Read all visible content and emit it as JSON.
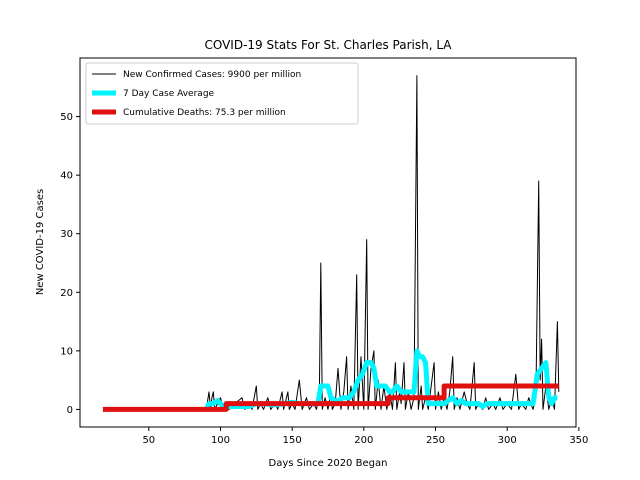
{
  "chart_data": {
    "type": "line",
    "title": "COVID-19 Stats For St. Charles Parish, LA",
    "xlabel": "Days Since 2020 Began",
    "ylabel": "New COVID-19 Cases",
    "xlim": [
      2,
      348
    ],
    "ylim": [
      -3,
      60
    ],
    "xticks": [
      50,
      100,
      150,
      200,
      250,
      300,
      350
    ],
    "yticks": [
      0,
      10,
      20,
      30,
      40,
      50
    ],
    "grid": false,
    "legend_position": "top-left",
    "series": [
      {
        "name": "New Confirmed Cases: 9900 per million",
        "color": "#000000",
        "style": "thin-line",
        "points": [
          [
            90,
            0
          ],
          [
            92,
            3
          ],
          [
            93,
            0
          ],
          [
            94,
            2
          ],
          [
            95,
            3
          ],
          [
            96,
            0
          ],
          [
            98,
            1
          ],
          [
            100,
            2
          ],
          [
            102,
            0
          ],
          [
            104,
            1
          ],
          [
            106,
            0
          ],
          [
            110,
            1
          ],
          [
            115,
            2
          ],
          [
            117,
            0
          ],
          [
            120,
            1
          ],
          [
            122,
            0
          ],
          [
            125,
            4
          ],
          [
            126,
            0
          ],
          [
            128,
            1
          ],
          [
            130,
            0
          ],
          [
            133,
            2
          ],
          [
            135,
            0
          ],
          [
            138,
            1
          ],
          [
            140,
            0
          ],
          [
            143,
            3
          ],
          [
            144,
            0
          ],
          [
            147,
            3
          ],
          [
            148,
            0
          ],
          [
            150,
            1
          ],
          [
            152,
            0
          ],
          [
            155,
            5
          ],
          [
            157,
            0
          ],
          [
            160,
            2
          ],
          [
            162,
            0
          ],
          [
            165,
            1
          ],
          [
            167,
            0
          ],
          [
            169,
            3
          ],
          [
            170,
            25
          ],
          [
            171,
            0
          ],
          [
            173,
            2
          ],
          [
            175,
            0
          ],
          [
            177,
            3
          ],
          [
            178,
            0
          ],
          [
            180,
            1
          ],
          [
            182,
            7
          ],
          [
            184,
            0
          ],
          [
            186,
            3
          ],
          [
            188,
            9
          ],
          [
            189,
            0
          ],
          [
            191,
            4
          ],
          [
            193,
            0
          ],
          [
            195,
            23
          ],
          [
            196,
            0
          ],
          [
            198,
            9
          ],
          [
            200,
            0
          ],
          [
            202,
            29
          ],
          [
            203,
            0
          ],
          [
            205,
            7
          ],
          [
            207,
            10
          ],
          [
            208,
            0
          ],
          [
            210,
            5
          ],
          [
            212,
            0
          ],
          [
            214,
            4
          ],
          [
            216,
            0
          ],
          [
            218,
            3
          ],
          [
            220,
            0
          ],
          [
            222,
            8
          ],
          [
            223,
            0
          ],
          [
            225,
            3
          ],
          [
            226,
            1
          ],
          [
            228,
            8
          ],
          [
            229,
            0
          ],
          [
            231,
            3
          ],
          [
            233,
            0
          ],
          [
            235,
            2
          ],
          [
            237,
            57
          ],
          [
            238,
            0
          ],
          [
            240,
            4
          ],
          [
            241,
            0
          ],
          [
            243,
            2
          ],
          [
            245,
            0
          ],
          [
            247,
            4
          ],
          [
            249,
            8
          ],
          [
            250,
            0
          ],
          [
            252,
            3
          ],
          [
            254,
            0
          ],
          [
            256,
            2
          ],
          [
            258,
            0
          ],
          [
            260,
            3
          ],
          [
            262,
            9
          ],
          [
            263,
            0
          ],
          [
            265,
            2
          ],
          [
            267,
            0
          ],
          [
            270,
            3
          ],
          [
            272,
            1
          ],
          [
            274,
            0
          ],
          [
            277,
            8
          ],
          [
            278,
            0
          ],
          [
            280,
            1
          ],
          [
            283,
            0
          ],
          [
            285,
            2
          ],
          [
            287,
            0
          ],
          [
            290,
            1
          ],
          [
            292,
            0
          ],
          [
            295,
            2
          ],
          [
            297,
            0
          ],
          [
            300,
            1
          ],
          [
            303,
            0
          ],
          [
            306,
            6
          ],
          [
            308,
            0
          ],
          [
            310,
            1
          ],
          [
            313,
            0
          ],
          [
            315,
            2
          ],
          [
            318,
            0
          ],
          [
            320,
            2
          ],
          [
            322,
            39
          ],
          [
            323,
            5
          ],
          [
            324,
            12
          ],
          [
            325,
            0
          ],
          [
            327,
            4
          ],
          [
            329,
            0
          ],
          [
            331,
            2
          ],
          [
            333,
            0
          ],
          [
            335,
            15
          ],
          [
            336,
            3
          ]
        ]
      },
      {
        "name": "7 Day Case Average",
        "color": "#00f5ff",
        "style": "thick-line",
        "points": [
          [
            90,
            0
          ],
          [
            92,
            1
          ],
          [
            95,
            1
          ],
          [
            98,
            1.5
          ],
          [
            100,
            1
          ],
          [
            102,
            0.5
          ],
          [
            105,
            0.5
          ],
          [
            108,
            0.5
          ],
          [
            112,
            0.5
          ],
          [
            116,
            0.5
          ],
          [
            120,
            0.5
          ],
          [
            125,
            1
          ],
          [
            130,
            1
          ],
          [
            135,
            0.8
          ],
          [
            140,
            0.8
          ],
          [
            145,
            1
          ],
          [
            150,
            1.2
          ],
          [
            155,
            1
          ],
          [
            160,
            1
          ],
          [
            165,
            1
          ],
          [
            168,
            1
          ],
          [
            170,
            4
          ],
          [
            172,
            4
          ],
          [
            175,
            4
          ],
          [
            177,
            2
          ],
          [
            180,
            1.5
          ],
          [
            183,
            1.5
          ],
          [
            185,
            2
          ],
          [
            188,
            2
          ],
          [
            190,
            2
          ],
          [
            193,
            3
          ],
          [
            196,
            5
          ],
          [
            199,
            6
          ],
          [
            202,
            8
          ],
          [
            205,
            8
          ],
          [
            207,
            7
          ],
          [
            209,
            4
          ],
          [
            212,
            4
          ],
          [
            215,
            4
          ],
          [
            218,
            3
          ],
          [
            220,
            3
          ],
          [
            223,
            4
          ],
          [
            226,
            3
          ],
          [
            229,
            3
          ],
          [
            233,
            3
          ],
          [
            235,
            3
          ],
          [
            237,
            10
          ],
          [
            239,
            9
          ],
          [
            241,
            9
          ],
          [
            243,
            8
          ],
          [
            245,
            1
          ],
          [
            248,
            1
          ],
          [
            250,
            1
          ],
          [
            253,
            1
          ],
          [
            256,
            1
          ],
          [
            259,
            1.5
          ],
          [
            262,
            2
          ],
          [
            265,
            1
          ],
          [
            268,
            1.5
          ],
          [
            271,
            1
          ],
          [
            274,
            1
          ],
          [
            277,
            1
          ],
          [
            280,
            1
          ],
          [
            283,
            0.5
          ],
          [
            286,
            1
          ],
          [
            289,
            1
          ],
          [
            292,
            1
          ],
          [
            296,
            1
          ],
          [
            300,
            1
          ],
          [
            305,
            1
          ],
          [
            310,
            1
          ],
          [
            315,
            1
          ],
          [
            318,
            1
          ],
          [
            321,
            6
          ],
          [
            324,
            7
          ],
          [
            327,
            8
          ],
          [
            329,
            2
          ],
          [
            331,
            1
          ],
          [
            333,
            2
          ],
          [
            335,
            2
          ]
        ]
      },
      {
        "name": "Cumulative Deaths: 75.3 per million",
        "color": "#e01010",
        "style": "thick-step",
        "points": [
          [
            18,
            0
          ],
          [
            104,
            0
          ],
          [
            104,
            1
          ],
          [
            217,
            1
          ],
          [
            217,
            2
          ],
          [
            256,
            2
          ],
          [
            256,
            4
          ],
          [
            336,
            4
          ]
        ]
      }
    ]
  }
}
